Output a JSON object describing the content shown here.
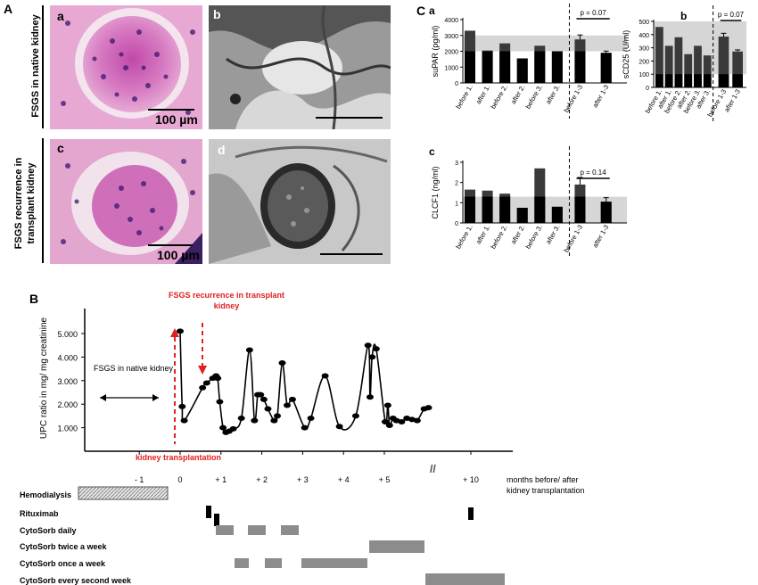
{
  "panel_a": {
    "letter": "A",
    "row1_label": "FSGS in native kidney",
    "row2_label_line1": "FSGS recurrence in",
    "row2_label_line2": "transplant kidney",
    "sub_a": "a",
    "sub_b": "b",
    "sub_c": "c",
    "sub_d": "d",
    "scale1": "100 µm",
    "scale2": "100 µm"
  },
  "panel_c": {
    "letter": "C",
    "chart_data": [
      {
        "type": "bar",
        "label": "a",
        "ylabel": "suPAR (pg/ml)",
        "ylim": [
          0,
          4000
        ],
        "yticks": [
          0,
          1000,
          2000,
          3000,
          4000
        ],
        "categories": [
          "before 1.",
          "after 1.",
          "before 2.",
          "after 2.",
          "before 3.",
          "after 3.",
          "before 1-3",
          "after 1-3"
        ],
        "values": [
          3300,
          2050,
          2500,
          1550,
          2350,
          2000,
          2750,
          1900
        ],
        "errors": [
          0,
          0,
          0,
          0,
          0,
          0,
          280,
          110
        ],
        "reference_band": [
          2000,
          3000
        ],
        "p_value": "p = 0.07"
      },
      {
        "type": "bar",
        "label": "b",
        "ylabel": "sCD25 (U/ml)",
        "ylim": [
          0,
          500
        ],
        "yticks": [
          0,
          100,
          200,
          300,
          400,
          500
        ],
        "categories": [
          "before 1.",
          "after 1.",
          "before 2.",
          "after 2.",
          "before 3.",
          "after 3.",
          "before 1-3",
          "after 1-3"
        ],
        "values": [
          458,
          315,
          380,
          252,
          315,
          242,
          385,
          272
        ],
        "errors": [
          0,
          0,
          0,
          0,
          0,
          0,
          25,
          12
        ],
        "reference_band": [
          100,
          500
        ],
        "p_value": "p = 0.07"
      },
      {
        "type": "bar",
        "label": "c",
        "ylabel": "CLCF1 (ng/ml)",
        "ylim": [
          0,
          3
        ],
        "yticks": [
          0,
          1,
          2,
          3
        ],
        "categories": [
          "before 1.",
          "after 1.",
          "before 2.",
          "after 2.",
          "before 3.",
          "after 3.",
          "before 1-3",
          "after 1-3"
        ],
        "values": [
          1.65,
          1.6,
          1.45,
          0.75,
          2.7,
          0.8,
          1.9,
          1.05
        ],
        "errors": [
          0,
          0,
          0,
          0,
          0,
          0,
          0.35,
          0.2
        ],
        "reference_band": [
          0,
          1.3
        ],
        "p_value": "p = 0.14"
      }
    ]
  },
  "panel_b": {
    "letter": "B",
    "chart_data": {
      "type": "line",
      "ylabel": "UPC ratio in mg/ mg creatinine",
      "yticks": [
        "1.000",
        "2.000",
        "3.000",
        "4.000",
        "5.000"
      ],
      "xticks": [
        "- 1",
        "0",
        "+ 1",
        "+ 2",
        "+ 3",
        "+ 4",
        "+ 5",
        "+ 10"
      ],
      "xlabel_line1": "months before/ after",
      "xlabel_line2": "kidney transplantation",
      "ylim": [
        0,
        6
      ],
      "points": [
        [
          0,
          5.1
        ],
        [
          0.05,
          1.9
        ],
        [
          0.1,
          1.3
        ],
        [
          0.55,
          2.7
        ],
        [
          0.65,
          2.9
        ],
        [
          0.8,
          3.1
        ],
        [
          0.88,
          3.2
        ],
        [
          0.92,
          3.1
        ],
        [
          0.97,
          2.1
        ],
        [
          1.05,
          1.0
        ],
        [
          1.12,
          0.8
        ],
        [
          1.2,
          0.85
        ],
        [
          1.3,
          0.95
        ],
        [
          1.5,
          1.4
        ],
        [
          1.7,
          4.3
        ],
        [
          1.82,
          1.3
        ],
        [
          1.9,
          2.4
        ],
        [
          1.97,
          2.4
        ],
        [
          2.05,
          2.2
        ],
        [
          2.15,
          1.8
        ],
        [
          2.3,
          1.3
        ],
        [
          2.38,
          1.5
        ],
        [
          2.5,
          3.75
        ],
        [
          2.62,
          1.95
        ],
        [
          2.75,
          2.2
        ],
        [
          3.05,
          1.0
        ],
        [
          3.2,
          1.4
        ],
        [
          3.55,
          3.2
        ],
        [
          3.9,
          1.05
        ],
        [
          4.3,
          1.5
        ],
        [
          4.6,
          4.5
        ],
        [
          4.65,
          2.3
        ],
        [
          4.7,
          4.0
        ],
        [
          4.8,
          4.35
        ],
        [
          5.05,
          1.25
        ],
        [
          5.2,
          1.95
        ],
        [
          5.3,
          1.1
        ],
        [
          5.5,
          1.4
        ],
        [
          5.7,
          1.3
        ],
        [
          6.0,
          1.25
        ],
        [
          6.3,
          1.4
        ],
        [
          6.6,
          1.35
        ],
        [
          6.9,
          1.3
        ],
        [
          7.3,
          1.8
        ],
        [
          7.55,
          1.85
        ]
      ],
      "annotation_native": "FSGS in native kidney",
      "annotation_recurrence_line1": "FSGS recurrence in transplant",
      "annotation_recurrence_line2": "kidney",
      "annotation_transplant": "kidney transplantation",
      "axis_break": "//"
    },
    "treatments": {
      "hemodialysis": "Hemodialysis",
      "rituximab": "Rituximab",
      "cytosorb_daily": "CytoSorb daily",
      "cytosorb_twice": "CytoSorb twice a week",
      "cytosorb_once": "CytoSorb once a week",
      "cytosorb_every_second": "CytoSorb every second week"
    }
  },
  "colors": {
    "bar_dark": "#3a3a3a",
    "bar_black": "#000000",
    "band": "#d6d6d6",
    "red": "#e02020",
    "treatment_bar": "#8c8c8c"
  }
}
